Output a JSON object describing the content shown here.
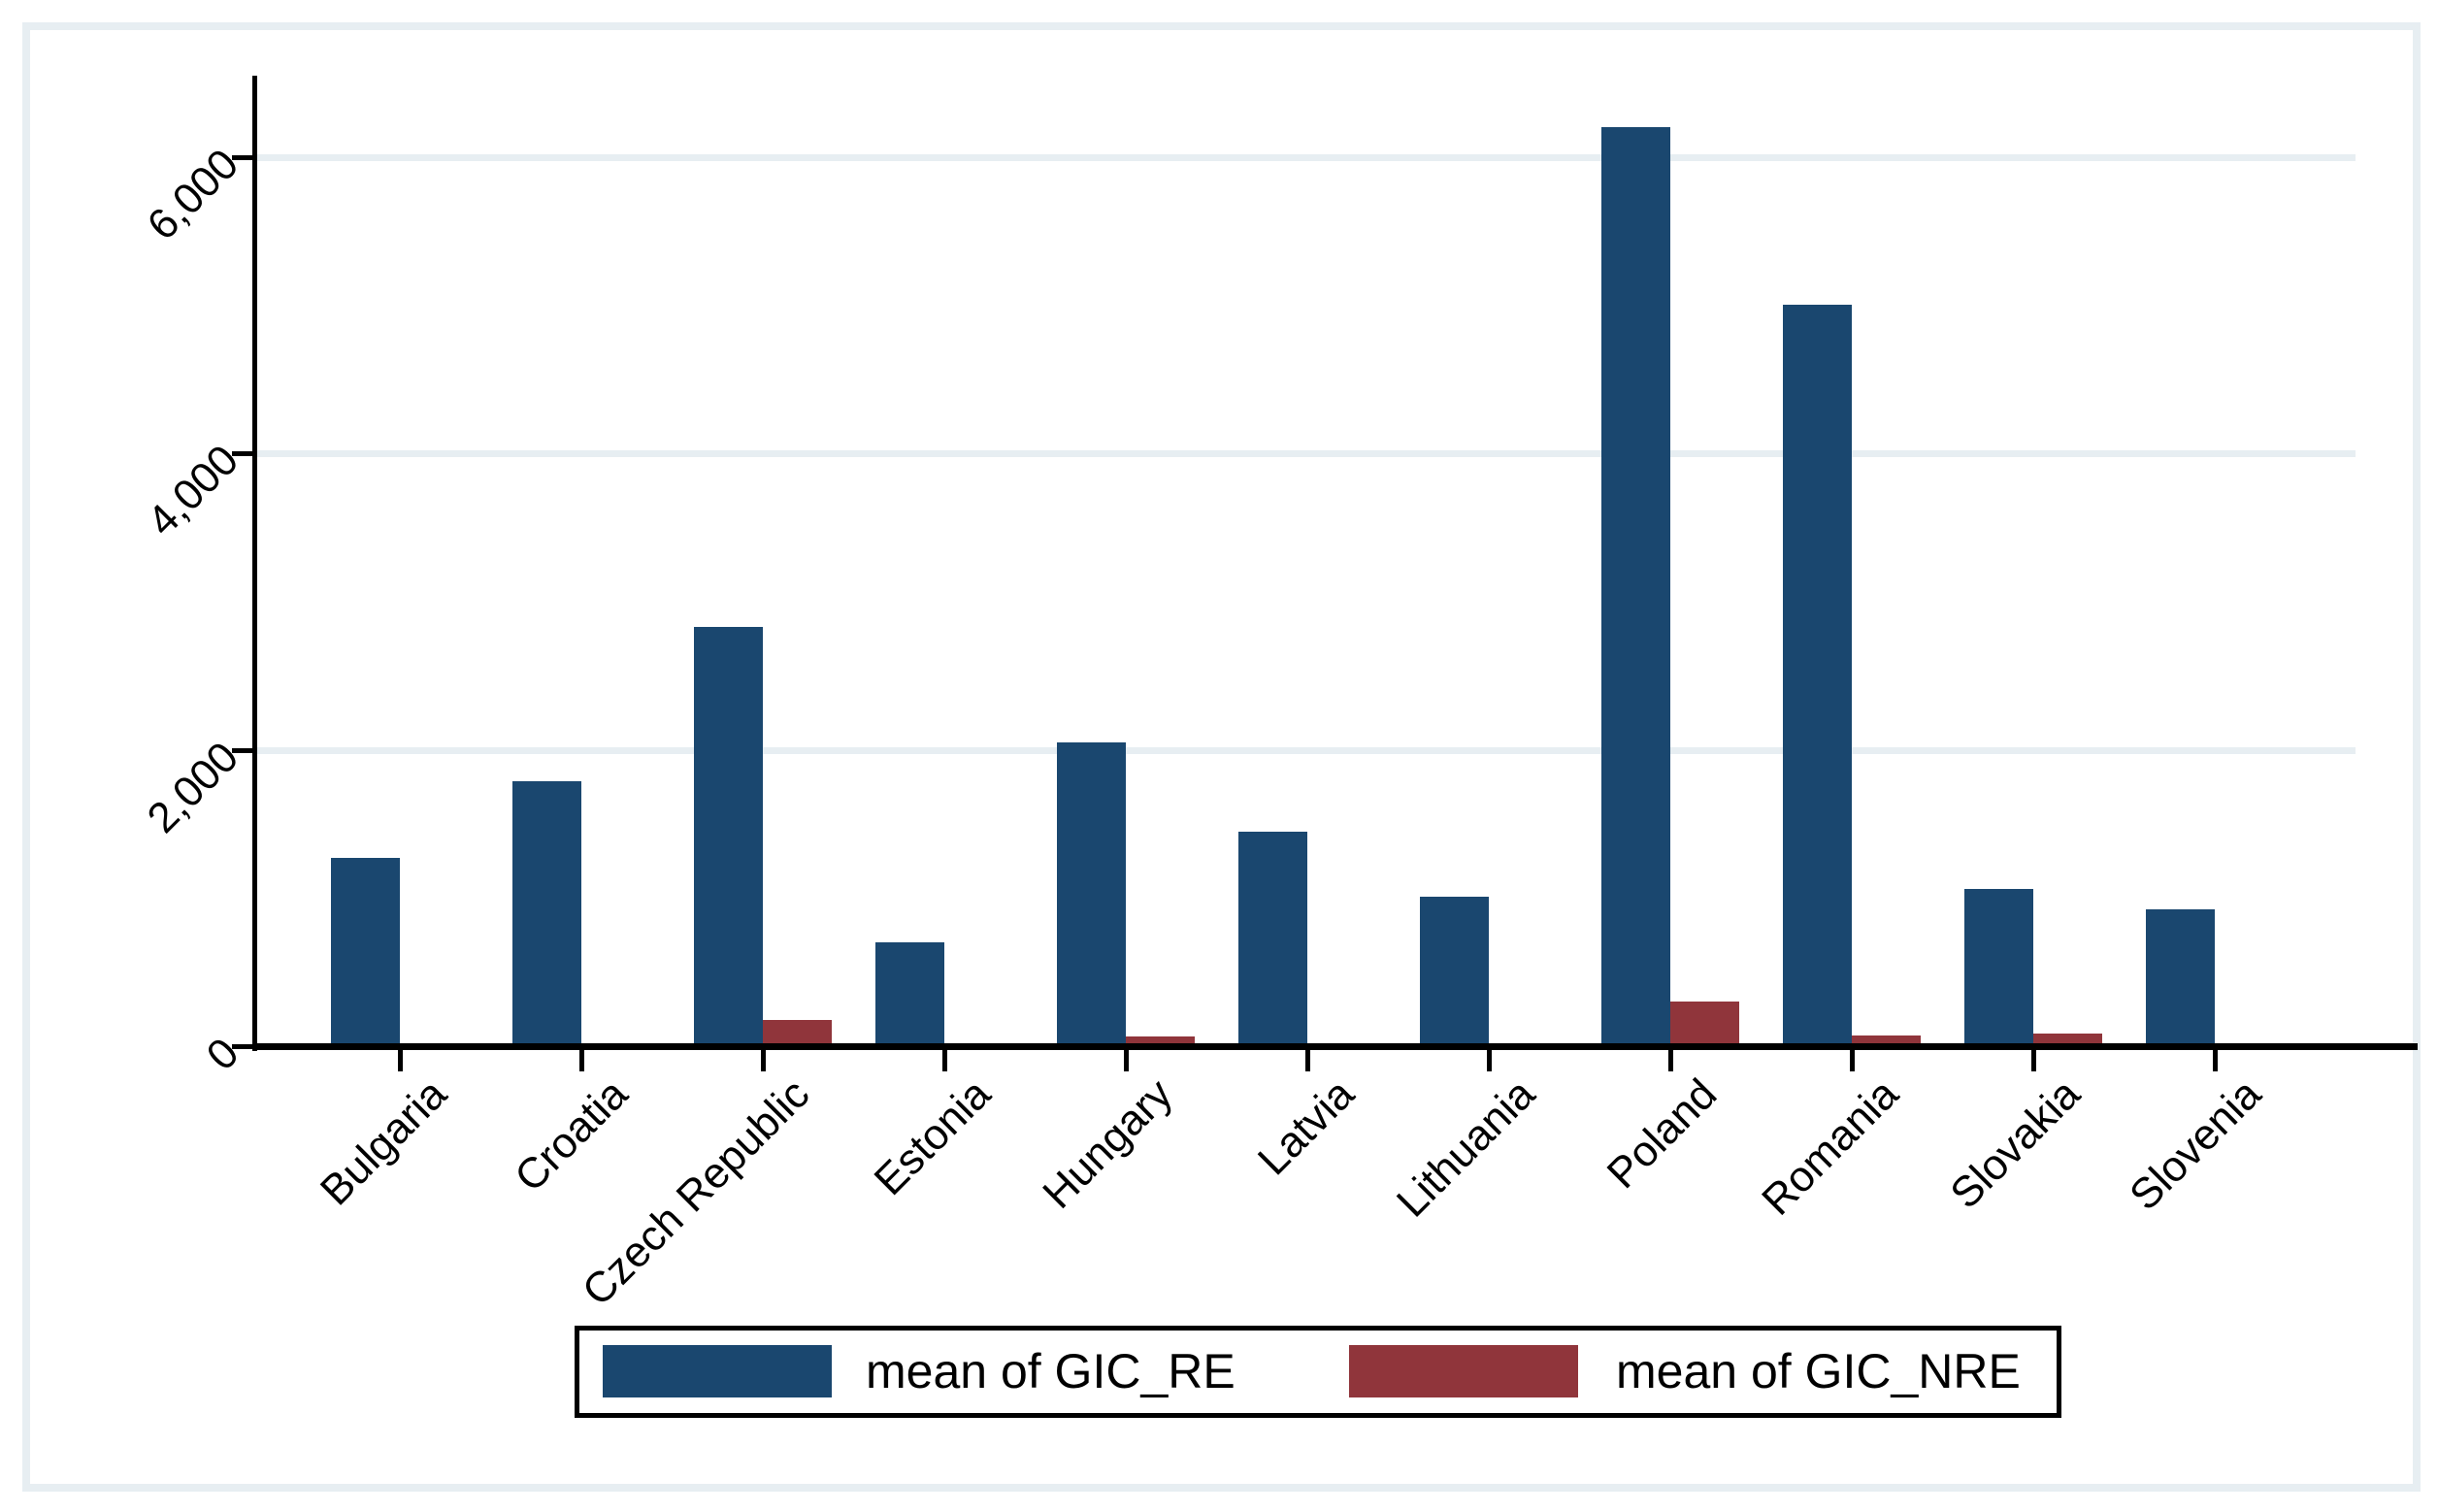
{
  "chart_data": {
    "type": "bar",
    "title": "",
    "xlabel": "",
    "ylabel": "",
    "categories": [
      "Bulgaria",
      "Croatia",
      "Czech Republic",
      "Estonia",
      "Hungary",
      "Latvia",
      "Lithuania",
      "Poland",
      "Romania",
      "Slovakia",
      "Slovenia"
    ],
    "series": [
      {
        "name": "mean of GIC_RE",
        "color": "#1A476F",
        "values": [
          1270,
          1790,
          2830,
          700,
          2050,
          1450,
          1010,
          6200,
          5000,
          1060,
          925
        ]
      },
      {
        "name": "mean of GIC_NRE",
        "color": "#90353B",
        "values": [
          15,
          5,
          180,
          10,
          65,
          20,
          5,
          300,
          70,
          85,
          10
        ]
      }
    ],
    "y_ticks": [
      0,
      2000,
      4000,
      6000
    ],
    "y_tick_labels": [
      "0",
      "2,000",
      "4,000",
      "6,000"
    ],
    "ylim": [
      0,
      6550
    ],
    "grid": true,
    "legend_position": "bottom",
    "tick_label_angle_deg": 45
  },
  "legend": {
    "items": [
      {
        "label": "mean of GIC_RE",
        "color": "#1A476F"
      },
      {
        "label": "mean of GIC_NRE",
        "color": "#90353B"
      }
    ]
  },
  "colors": {
    "bar_blue": "#1A476F",
    "bar_maroon": "#90353B",
    "grid_line": "#E7EEF2",
    "outer_frame": "#E7EEF2",
    "axis": "#000000",
    "background": "#FFFFFF"
  }
}
